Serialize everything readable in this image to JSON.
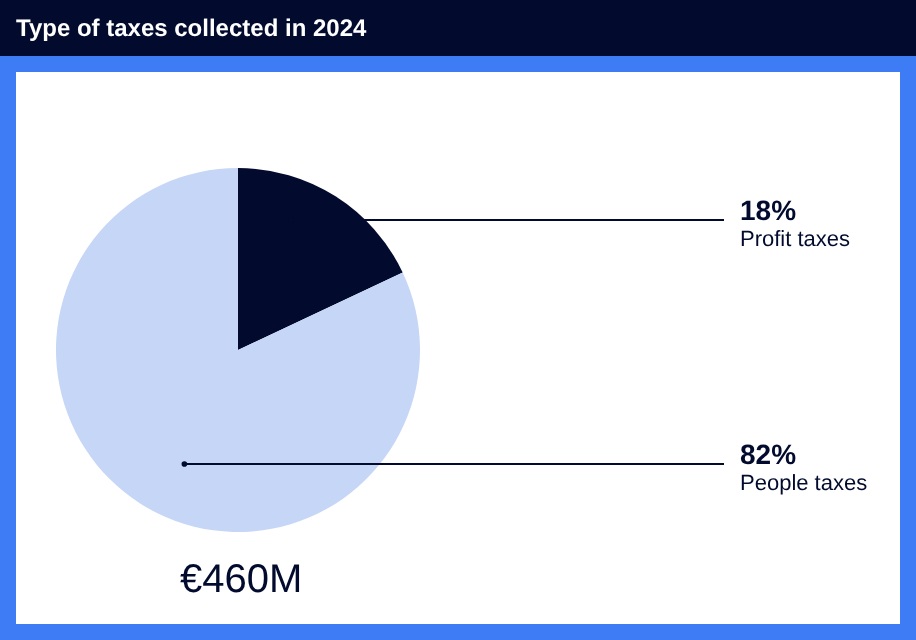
{
  "chart_data": {
    "type": "pie",
    "title": "Type of taxes collected in 2024",
    "categories": [
      "Profit taxes",
      "People taxes"
    ],
    "values": [
      18,
      82
    ],
    "colors": [
      "#020b2e",
      "#c6d6f7"
    ],
    "value_labels": [
      "18%",
      "82%"
    ],
    "annotations": [
      "€460M"
    ]
  }
}
